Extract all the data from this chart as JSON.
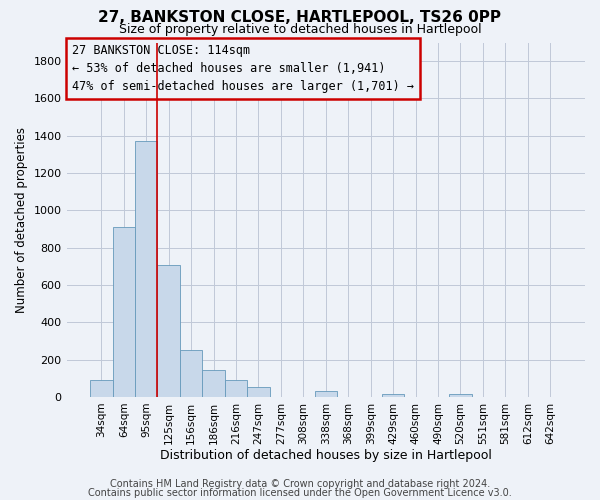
{
  "title": "27, BANKSTON CLOSE, HARTLEPOOL, TS26 0PP",
  "subtitle": "Size of property relative to detached houses in Hartlepool",
  "xlabel": "Distribution of detached houses by size in Hartlepool",
  "ylabel": "Number of detached properties",
  "bar_color": "#c8d8ea",
  "bar_edge_color": "#6699bb",
  "bar_edge_width": 0.6,
  "categories": [
    "34sqm",
    "64sqm",
    "95sqm",
    "125sqm",
    "156sqm",
    "186sqm",
    "216sqm",
    "247sqm",
    "277sqm",
    "308sqm",
    "338sqm",
    "368sqm",
    "399sqm",
    "429sqm",
    "460sqm",
    "490sqm",
    "520sqm",
    "551sqm",
    "581sqm",
    "612sqm",
    "642sqm"
  ],
  "values": [
    90,
    910,
    1370,
    710,
    250,
    145,
    90,
    52,
    0,
    0,
    30,
    0,
    0,
    18,
    0,
    0,
    18,
    0,
    0,
    0,
    0
  ],
  "ylim": [
    0,
    1900
  ],
  "yticks": [
    0,
    200,
    400,
    600,
    800,
    1000,
    1200,
    1400,
    1600,
    1800
  ],
  "vline_index": 2.5,
  "vline_color": "#cc0000",
  "annotation_line1": "27 BANKSTON CLOSE: 114sqm",
  "annotation_line2": "← 53% of detached houses are smaller (1,941)",
  "annotation_line3": "47% of semi-detached houses are larger (1,701) →",
  "footer_line1": "Contains HM Land Registry data © Crown copyright and database right 2024.",
  "footer_line2": "Contains public sector information licensed under the Open Government Licence v3.0.",
  "background_color": "#eef2f8",
  "grid_color": "#c0c8d8",
  "title_fontsize": 11,
  "subtitle_fontsize": 9,
  "xlabel_fontsize": 9,
  "ylabel_fontsize": 8.5,
  "annotation_fontsize": 8.5,
  "footer_fontsize": 7,
  "tick_fontsize": 7.5,
  "ytick_fontsize": 8
}
